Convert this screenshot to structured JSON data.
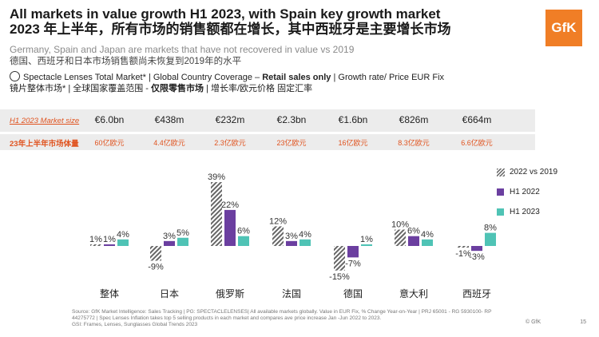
{
  "header": {
    "title_en": "All markets in value growth H1 2023, with Spain key growth market",
    "title_cn": "2023 年上半年，所有市场的销售额都在增长，其中西班牙是主要增长市场",
    "subtitle_en": "Germany, Spain and Japan are markets that have not recovered in value vs 2019",
    "subtitle_cn": "德国、西班牙和日本市场销售额尚未恢复到2019年的水平",
    "coverage_en_pre": "Spectacle Lenses Total Market* | Global Country Coverage – ",
    "coverage_en_bold": "Retail sales only",
    "coverage_en_post": " | Growth rate/ Price EUR Fix",
    "coverage_cn_pre": "镜片整体市场* | 全球国家覆盖范围 - ",
    "coverage_cn_bold": "仅限零售市场",
    "coverage_cn_post": " | 增长率/欧元价格 固定汇率",
    "logo": "GfK",
    "coverage_icon": "globe-icon"
  },
  "size_row": {
    "label": "H1 2023  Market size",
    "values": [
      "€6.0bn",
      "€438m",
      "€232m",
      "€2.3bn",
      "€1.6bn",
      "€826m",
      "€664m"
    ]
  },
  "cny_row": {
    "label": "23年上半年市场体量",
    "values": [
      "60亿欧元",
      "4.4亿欧元",
      "2.3亿欧元",
      "23亿欧元",
      "16亿欧元",
      "8.3亿欧元",
      "6.6亿欧元"
    ]
  },
  "colors": {
    "accent": "#e0531f",
    "h1_2022": "#6b3fa0",
    "h1_2023": "#4fc3b5",
    "vs2019": "#666666",
    "logo": "#f07e26"
  },
  "chart_data": {
    "type": "bar",
    "categories": [
      "整体",
      "日本",
      "俄罗斯",
      "法国",
      "德国",
      "意大利",
      "西班牙"
    ],
    "series": [
      {
        "name": "2022 vs 2019",
        "values": [
          1,
          -9,
          39,
          12,
          -15,
          10,
          -1
        ],
        "labels": [
          "1%",
          "-9%",
          "39%",
          "12%",
          "-15%",
          "10%",
          "-1%"
        ],
        "pattern": "hatched"
      },
      {
        "name": "H1 2022",
        "values": [
          1,
          3,
          22,
          3,
          -7,
          6,
          -3
        ],
        "labels": [
          "1%",
          "3%",
          "22%",
          "3%",
          "-7%",
          "6%",
          "-3%"
        ]
      },
      {
        "name": "H1 2023",
        "values": [
          4,
          5,
          6,
          4,
          1,
          4,
          8
        ],
        "labels": [
          "4%",
          "5%",
          "6%",
          "4%",
          "1%",
          "4%",
          "8%"
        ]
      }
    ],
    "legend_position": "right",
    "grid": false
  },
  "footer": {
    "line1": "Source: GfK Market Intelligence: Sales Tracking | PG: SPECTACLELENSES| All available markets globally. Value in EUR Fix, % Change Year-on-Year | PRJ 65001 - RG 5930100- RP",
    "line2": "44275772 | Spec Lenses Inflation takes top 5 selling products in each market and compares ave price increase Jan -Jun 2022 to 2023.",
    "line3": "GSI: Frames, Lenses, Sunglasses Global Trends 2023",
    "copyright": "© GfK",
    "page": "15"
  }
}
